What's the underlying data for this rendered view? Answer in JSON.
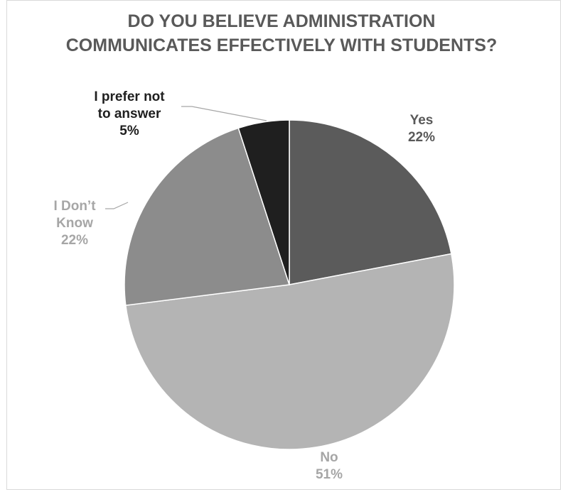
{
  "chart_data": {
    "type": "pie",
    "title_lines": [
      "DO YOU BELIEVE ADMINISTRATION",
      "COMMUNICATES EFFECTIVELY WITH STUDENTS?"
    ],
    "slices": [
      {
        "category_lines": [
          "Yes"
        ],
        "value": 22,
        "value_label": "22%",
        "color": "#5b5b5b",
        "label_color": "#595959"
      },
      {
        "category_lines": [
          "No"
        ],
        "value": 51,
        "value_label": "51%",
        "color": "#b4b4b4",
        "label_color": "#a6a6a6"
      },
      {
        "category_lines": [
          "I Don’t",
          "Know"
        ],
        "value": 22,
        "value_label": "22%",
        "color": "#8c8c8c",
        "label_color": "#a6a6a6"
      },
      {
        "category_lines": [
          "I prefer not",
          "to answer"
        ],
        "value": 5,
        "value_label": "5%",
        "color": "#1f1f1f",
        "label_color": "#1f1f1f"
      }
    ],
    "start_angle_deg": 0,
    "direction": "clockwise",
    "legend": "none"
  }
}
